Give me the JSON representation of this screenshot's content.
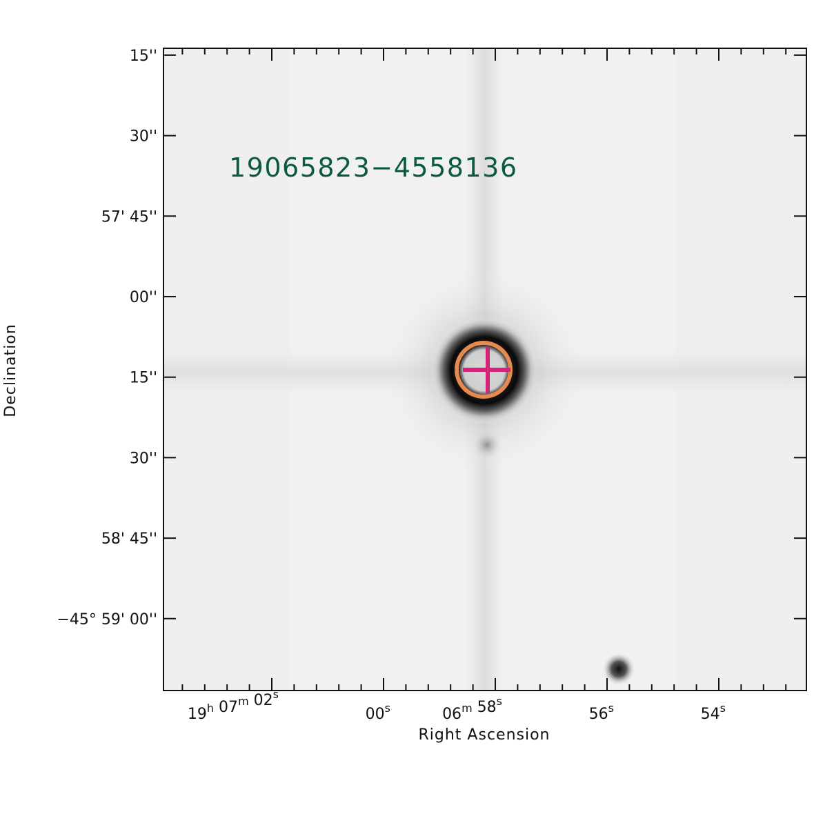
{
  "source_label": "19065823−4558136",
  "axes": {
    "xlabel": "Right Ascension",
    "ylabel": "Declination"
  },
  "dec_ticks": [
    {
      "dec_arcsec": -45,
      "deg": "",
      "min": "",
      "sec": "15''"
    },
    {
      "dec_arcsec": -30,
      "deg": "",
      "min": "",
      "sec": "30''"
    },
    {
      "dec_arcsec": -15,
      "deg": "",
      "min": "57'",
      "sec": "45''"
    },
    {
      "dec_arcsec": 0,
      "deg": "",
      "min": "",
      "sec": "00''"
    },
    {
      "dec_arcsec": 15,
      "deg": "",
      "min": "",
      "sec": "15''"
    },
    {
      "dec_arcsec": 30,
      "deg": "",
      "min": "",
      "sec": "30''"
    },
    {
      "dec_arcsec": 45,
      "deg": "",
      "min": "58'",
      "sec": "45''"
    },
    {
      "dec_arcsec": 60,
      "deg": "−45°",
      "min": "59'",
      "sec": "00''"
    }
  ],
  "ra_ticks": [
    {
      "ra_sec_offset": 4,
      "h": "19",
      "m": "07",
      "s": "02"
    },
    {
      "ra_sec_offset": 2,
      "h": "",
      "m": "",
      "s": "00"
    },
    {
      "ra_sec_offset": 0,
      "h": "",
      "m": "06",
      "s": "58"
    },
    {
      "ra_sec_offset": -2,
      "h": "",
      "m": "",
      "s": "56"
    },
    {
      "ra_sec_offset": -4,
      "h": "",
      "m": "",
      "s": "54"
    }
  ],
  "units": {
    "h": "h",
    "m": "m",
    "s": "s"
  },
  "colors": {
    "label": "#0b5a3c",
    "circle": "#e8894f",
    "cross": "#d6237a",
    "axis": "#111111"
  }
}
